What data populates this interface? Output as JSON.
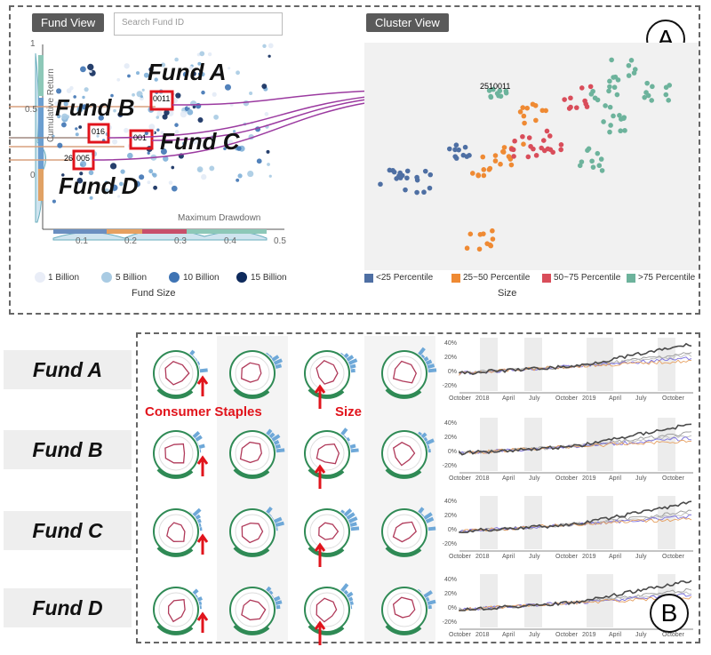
{
  "fund_view": {
    "title": "Fund View",
    "search_placeholder": "Search Fund ID",
    "y_axis_label": "Cumulative Return",
    "x_axis_label": "Maximum Drawdown",
    "x_ticks": [
      "0.1",
      "0.2",
      "0.3",
      "0.4",
      "0.5"
    ],
    "y_ticks": [
      "1",
      "0.5",
      "0"
    ],
    "size_legend": [
      "1 Billion",
      "5 Billion",
      "10 Billion",
      "15 Billion"
    ],
    "size_legend_title": "Fund Size",
    "box_labels": [
      "0011",
      "016",
      "001",
      "005"
    ],
    "box_prefix_d": "26"
  },
  "cluster_view": {
    "title": "Cluster View",
    "cluster_label": "2510011",
    "legend": [
      "<25 Percentile",
      "25~50 Percentile",
      "50~75 Percentile",
      ">75 Percentile"
    ],
    "legend_colors": [
      "#4e6fa3",
      "#ef8a33",
      "#d94d5a",
      "#6db39c"
    ],
    "legend_title": "Size"
  },
  "annotations": {
    "fund_a": "Fund A",
    "fund_b": "Fund B",
    "fund_c": "Fund C",
    "fund_d": "Fund D",
    "panel_a": "A",
    "panel_b": "B",
    "consumer_staples": "Consumer Staples",
    "size": "Size"
  },
  "timeline": {
    "y_ticks": [
      "40%",
      "20%",
      "0%",
      "-20%"
    ],
    "x_ticks": [
      "October",
      "2018",
      "April",
      "July",
      "October",
      "2019",
      "April",
      "July",
      "October"
    ]
  },
  "rows": [
    {
      "label": "Fund A"
    },
    {
      "label": "Fund B"
    },
    {
      "label": "Fund C"
    },
    {
      "label": "Fund D"
    }
  ]
}
